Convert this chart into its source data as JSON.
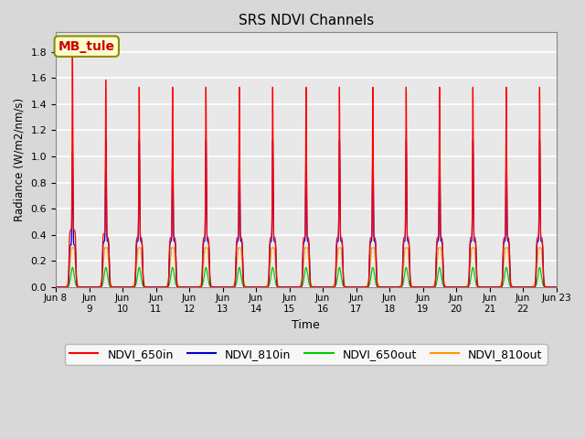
{
  "title": "SRS NDVI Channels",
  "xlabel": "Time",
  "ylabel": "Radiance (W/m2/nm/s)",
  "ylim": [
    0,
    1.95
  ],
  "yticks": [
    0.0,
    0.2,
    0.4,
    0.6,
    0.8,
    1.0,
    1.2,
    1.4,
    1.6,
    1.8
  ],
  "line_colors": {
    "NDVI_650in": "#ff0000",
    "NDVI_810in": "#0000cc",
    "NDVI_650out": "#00cc00",
    "NDVI_810out": "#ff9900"
  },
  "legend_label": "MB_tule",
  "legend_bg": "#ffffcc",
  "legend_border": "#8b8b00",
  "n_days": 15,
  "start_day": 8,
  "end_day": 23,
  "figsize": [
    6.4,
    4.8
  ],
  "dpi": 100
}
